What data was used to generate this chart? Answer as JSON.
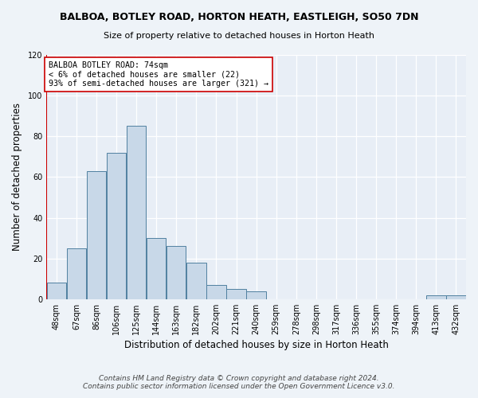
{
  "title_line1": "BALBOA, BOTLEY ROAD, HORTON HEATH, EASTLEIGH, SO50 7DN",
  "title_line2": "Size of property relative to detached houses in Horton Heath",
  "xlabel": "Distribution of detached houses by size in Horton Heath",
  "ylabel": "Number of detached properties",
  "categories": [
    "48sqm",
    "67sqm",
    "86sqm",
    "106sqm",
    "125sqm",
    "144sqm",
    "163sqm",
    "182sqm",
    "202sqm",
    "221sqm",
    "240sqm",
    "259sqm",
    "278sqm",
    "298sqm",
    "317sqm",
    "336sqm",
    "355sqm",
    "374sqm",
    "394sqm",
    "413sqm",
    "432sqm"
  ],
  "values": [
    8,
    25,
    63,
    72,
    85,
    30,
    26,
    18,
    7,
    5,
    4,
    0,
    0,
    0,
    0,
    0,
    0,
    0,
    0,
    2,
    2
  ],
  "bar_color": "#c8d8e8",
  "bar_edge_color": "#5080a0",
  "property_label": "BALBOA BOTLEY ROAD: 74sqm",
  "pct_smaller": 6,
  "count_smaller": 22,
  "pct_larger": 93,
  "count_larger": 321,
  "vline_color": "#cc0000",
  "vline_x": -0.5,
  "annotation_text_line1": "BALBOA BOTLEY ROAD: 74sqm",
  "annotation_text_line2": "< 6% of detached houses are smaller (22)",
  "annotation_text_line3": "93% of semi-detached houses are larger (321) →",
  "ylim": [
    0,
    120
  ],
  "yticks": [
    0,
    20,
    40,
    60,
    80,
    100,
    120
  ],
  "footer_line1": "Contains HM Land Registry data © Crown copyright and database right 2024.",
  "footer_line2": "Contains public sector information licensed under the Open Government Licence v3.0.",
  "fig_bg_color": "#eef3f8",
  "axes_bg_color": "#e8eef6",
  "figsize": [
    6.0,
    5.0
  ],
  "dpi": 100
}
